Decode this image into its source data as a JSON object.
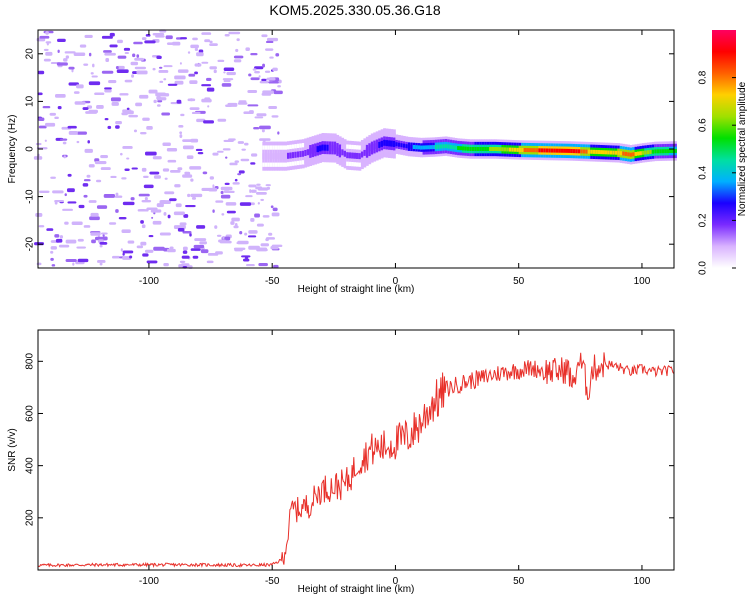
{
  "title": "KOM5.2025.330.05.36.G18",
  "chart_data": [
    {
      "type": "heatmap",
      "name": "spectrogram",
      "xlabel": "Height of straight line (km)",
      "ylabel": "Frequency (Hz)",
      "xlim": [
        -145,
        113
      ],
      "ylim": [
        -25,
        25
      ],
      "xticks": [
        -100,
        -50,
        0,
        50,
        100
      ],
      "yticks": [
        -20,
        -10,
        0,
        10,
        20
      ],
      "colorbar": {
        "label": "Normalized spectral amplitude",
        "range": [
          0,
          1
        ],
        "ticks": [
          0.0,
          0.2,
          0.4,
          0.6,
          0.8
        ],
        "colors": [
          "#ffffff",
          "#d9b3ff",
          "#7a2bff",
          "#1a00ff",
          "#00b0ff",
          "#00e0a0",
          "#00e000",
          "#a0e000",
          "#ffd000",
          "#ff6000",
          "#ff0000",
          "#ff0060"
        ]
      },
      "signal_band": {
        "noise_region_x": [
          -145,
          -50
        ],
        "trace_x": [
          -55,
          -45,
          -38,
          -30,
          -25,
          -20,
          -15,
          -10,
          -5,
          0,
          5,
          10,
          15,
          20,
          25,
          30,
          40,
          50,
          60,
          70,
          75,
          80,
          90,
          95,
          100,
          105,
          113
        ],
        "trace_freq": [
          -1.5,
          -1.5,
          -1.0,
          0.3,
          0.2,
          -1.3,
          -1.5,
          0.2,
          1.3,
          1.0,
          0.5,
          0.3,
          0.4,
          0.6,
          0.2,
          0.0,
          0.0,
          -0.2,
          -0.3,
          -0.4,
          -0.5,
          -0.6,
          -0.8,
          -1.2,
          -0.8,
          -0.5,
          -0.4
        ],
        "trace_amplitude": [
          0.15,
          0.18,
          0.2,
          0.3,
          0.25,
          0.2,
          0.2,
          0.25,
          0.3,
          0.3,
          0.35,
          0.4,
          0.45,
          0.5,
          0.55,
          0.6,
          0.65,
          0.8,
          0.95,
          0.95,
          0.9,
          0.75,
          0.8,
          0.85,
          0.7,
          0.6,
          0.55
        ]
      }
    },
    {
      "type": "line",
      "name": "snr",
      "xlabel": "Height of straight line (km)",
      "ylabel": "SNR (v/v)",
      "xlim": [
        -145,
        113
      ],
      "ylim": [
        0,
        920
      ],
      "xticks": [
        -100,
        -50,
        0,
        50,
        100
      ],
      "yticks": [
        200,
        400,
        600,
        800
      ],
      "color": "#e8302a",
      "x": [
        -145,
        -120,
        -100,
        -80,
        -60,
        -50,
        -46,
        -44,
        -42,
        -40,
        -35,
        -30,
        -25,
        -20,
        -17,
        -15,
        -12,
        -10,
        -5,
        0,
        5,
        10,
        15,
        18,
        20,
        25,
        30,
        35,
        40,
        45,
        50,
        55,
        60,
        65,
        70,
        72,
        74,
        76,
        78,
        80,
        85,
        90,
        95,
        100,
        105,
        113
      ],
      "y": [
        18,
        20,
        20,
        20,
        18,
        20,
        40,
        110,
        240,
        230,
        250,
        310,
        320,
        330,
        380,
        420,
        440,
        460,
        470,
        490,
        510,
        560,
        640,
        660,
        690,
        710,
        725,
        735,
        750,
        760,
        765,
        775,
        765,
        760,
        770,
        700,
        800,
        780,
        680,
        770,
        790,
        780,
        760,
        770,
        760,
        765
      ]
    }
  ]
}
